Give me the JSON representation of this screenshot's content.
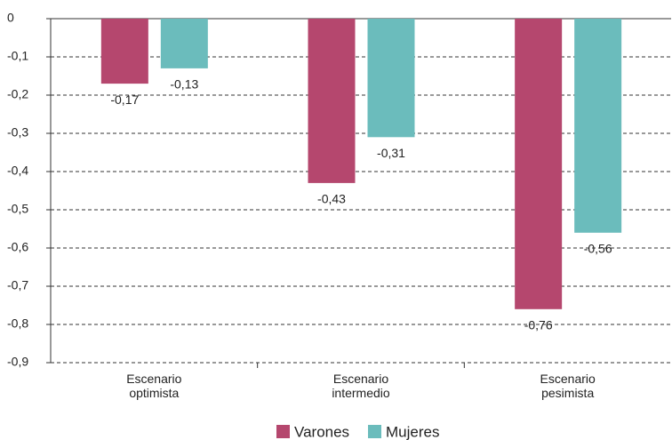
{
  "chart_data": {
    "type": "bar",
    "categories": [
      "Escenario\noptimista",
      "Escenario\nintermedio",
      "Escenario\npesimista"
    ],
    "series": [
      {
        "name": "Varones",
        "color": "#b5476e",
        "values": [
          -0.17,
          -0.43,
          -0.76
        ],
        "value_labels": [
          "-0,17",
          "-0,43",
          "-0,76"
        ]
      },
      {
        "name": "Mujeres",
        "color": "#6bbcbc",
        "values": [
          -0.13,
          -0.31,
          -0.56
        ],
        "value_labels": [
          "-0,13",
          "-0,31",
          "-0,56"
        ]
      }
    ],
    "ylim": [
      0,
      -0.9
    ],
    "yticks": [
      0,
      {
        "value": -0.1,
        "label": "-0,1"
      },
      {
        "value": -0.2,
        "label": "-0,2"
      },
      {
        "value": -0.3,
        "label": "-0,3"
      },
      {
        "value": -0.4,
        "label": "-0,4"
      },
      {
        "value": -0.5,
        "label": "-0,5"
      },
      {
        "value": -0.6,
        "label": "-0,6"
      },
      {
        "value": -0.7,
        "label": "-0,7"
      },
      {
        "value": -0.8,
        "label": "-0,8"
      },
      {
        "value": -0.9,
        "label": "-0,9"
      }
    ],
    "grid": true,
    "legend": "bottom"
  }
}
